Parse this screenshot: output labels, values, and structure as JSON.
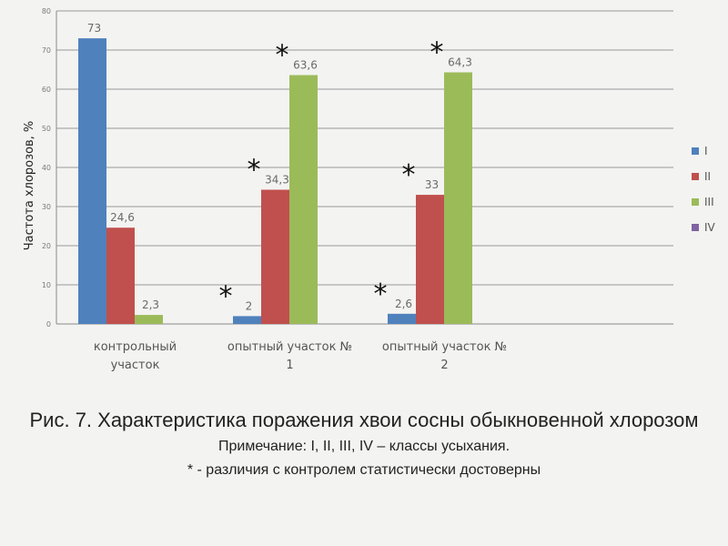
{
  "chart_data": {
    "type": "bar",
    "ylabel": "Частота хлорозов, %",
    "ylim": [
      0,
      80
    ],
    "yticks": [
      0,
      10,
      20,
      30,
      40,
      50,
      60,
      70,
      80
    ],
    "grid": true,
    "legend_position": "right",
    "categories": [
      [
        "контрольный",
        "участок"
      ],
      [
        "опытный участок №",
        "1"
      ],
      [
        "опытный участок №",
        "2"
      ]
    ],
    "series": [
      {
        "name": "I",
        "color": "#4f81bd",
        "values": [
          73,
          2,
          2.6
        ],
        "labels": [
          "73",
          "2",
          "2,6"
        ]
      },
      {
        "name": "II",
        "color": "#c0504d",
        "values": [
          24.6,
          34.3,
          33
        ],
        "labels": [
          "24,6",
          "34,3",
          "33"
        ]
      },
      {
        "name": "III",
        "color": "#9bbb59",
        "values": [
          2.3,
          63.6,
          64.3
        ],
        "labels": [
          "2,3",
          "63,6",
          "64,3"
        ]
      },
      {
        "name": "IV",
        "color": "#8064a2",
        "values": [
          null,
          null,
          null
        ],
        "labels": [
          "",
          "",
          ""
        ]
      }
    ],
    "significance_marks": [
      {
        "category": 1,
        "series": 0,
        "text": "*"
      },
      {
        "category": 1,
        "series": 1,
        "text": "*"
      },
      {
        "category": 1,
        "series": 2,
        "text": "*"
      },
      {
        "category": 2,
        "series": 0,
        "text": "*"
      },
      {
        "category": 2,
        "series": 1,
        "text": "*"
      },
      {
        "category": 2,
        "series": 2,
        "text": "*"
      }
    ]
  },
  "caption": {
    "title": "Рис. 7. Характеристика поражения хвои сосны обыкновенной хлорозом",
    "note_line1": "Примечание: I, II, III, IV – классы усыхания.",
    "note_line2": "* - различия с контролем статистически достоверны"
  }
}
